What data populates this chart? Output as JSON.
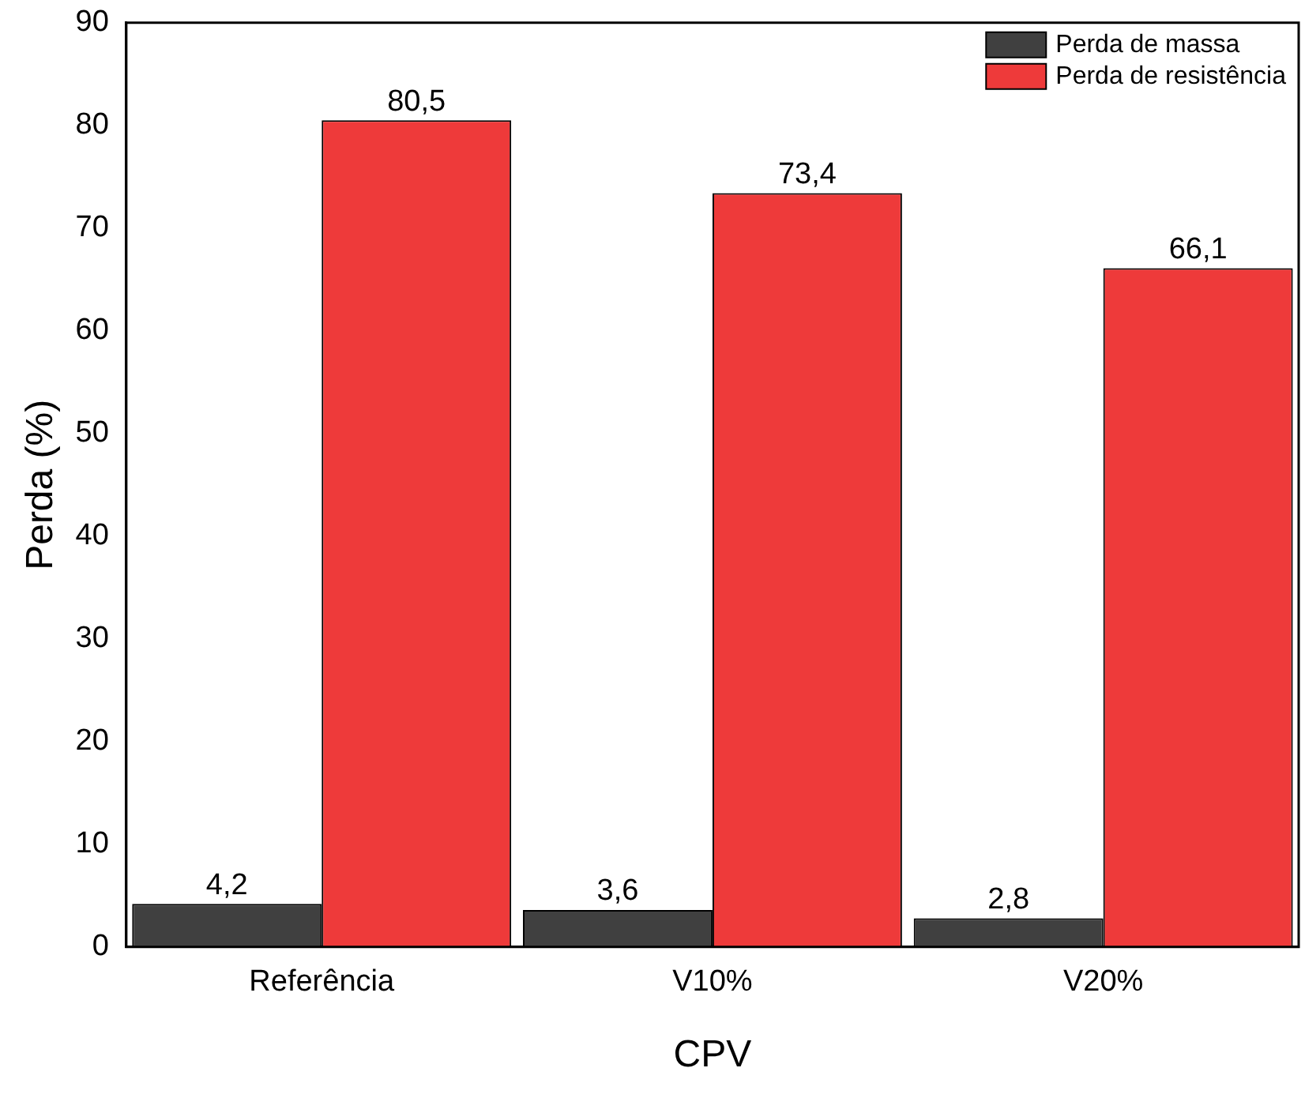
{
  "chart_data": {
    "type": "bar",
    "xlabel": "CPV",
    "ylabel": "Perda (%)",
    "categories": [
      "Referência",
      "V10%",
      "V20%"
    ],
    "series": [
      {
        "name": "Perda de massa",
        "color": "#404040",
        "values": [
          4.2,
          3.6,
          2.8
        ],
        "value_labels": [
          "4,2",
          "3,6",
          "2,8"
        ]
      },
      {
        "name": "Perda de resistência",
        "color": "#ee3a3a",
        "values": [
          80.5,
          73.4,
          66.1
        ],
        "value_labels": [
          "80,5",
          "73,4",
          "66,1"
        ]
      }
    ],
    "ylim": [
      0,
      90
    ],
    "yticks": [
      0,
      10,
      20,
      30,
      40,
      50,
      60,
      70,
      80,
      90
    ],
    "grid": false,
    "legend": "top right"
  }
}
